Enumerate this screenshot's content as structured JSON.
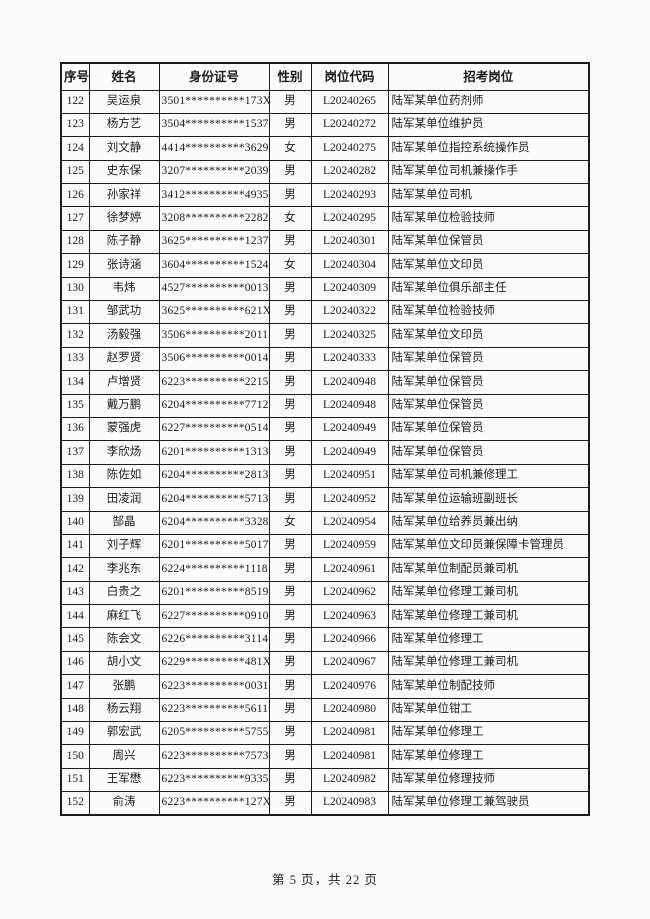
{
  "table": {
    "columns": [
      {
        "label": "序号"
      },
      {
        "label": "姓名"
      },
      {
        "label": "身份证号"
      },
      {
        "label": "性别"
      },
      {
        "label": "岗位代码"
      },
      {
        "label": "招考岗位"
      }
    ],
    "rows": [
      [
        "122",
        "吴运泉",
        "3501**********173X",
        "男",
        "L20240265",
        "陆军某单位药剂师"
      ],
      [
        "123",
        "杨方艺",
        "3504**********1537",
        "男",
        "L20240272",
        "陆军某单位维护员"
      ],
      [
        "124",
        "刘文静",
        "4414**********3629",
        "女",
        "L20240275",
        "陆军某单位指控系统操作员"
      ],
      [
        "125",
        "史东保",
        "3207**********2039",
        "男",
        "L20240282",
        "陆军某单位司机兼操作手"
      ],
      [
        "126",
        "孙家祥",
        "3412**********4935",
        "男",
        "L20240293",
        "陆军某单位司机"
      ],
      [
        "127",
        "徐梦婷",
        "3208**********2282",
        "女",
        "L20240295",
        "陆军某单位检验技师"
      ],
      [
        "128",
        "陈子静",
        "3625**********1237",
        "男",
        "L20240301",
        "陆军某单位保管员"
      ],
      [
        "129",
        "张诗涵",
        "3604**********1524",
        "女",
        "L20240304",
        "陆军某单位文印员"
      ],
      [
        "130",
        "韦炜",
        "4527**********0013",
        "男",
        "L20240309",
        "陆军某单位俱乐部主任"
      ],
      [
        "131",
        "邹武功",
        "3625**********621X",
        "男",
        "L20240322",
        "陆军某单位检验技师"
      ],
      [
        "132",
        "汤毅强",
        "3506**********2011",
        "男",
        "L20240325",
        "陆军某单位文印员"
      ],
      [
        "133",
        "赵罗贤",
        "3506**********0014",
        "男",
        "L20240333",
        "陆军某单位保管员"
      ],
      [
        "134",
        "卢增贤",
        "6223**********2215",
        "男",
        "L20240948",
        "陆军某单位保管员"
      ],
      [
        "135",
        "戴万鹏",
        "6204**********7712",
        "男",
        "L20240948",
        "陆军某单位保管员"
      ],
      [
        "136",
        "蒙强虎",
        "6227**********0514",
        "男",
        "L20240949",
        "陆军某单位保管员"
      ],
      [
        "137",
        "李欣炀",
        "6201**********1313",
        "男",
        "L20240949",
        "陆军某单位保管员"
      ],
      [
        "138",
        "陈佐如",
        "6204**********2813",
        "男",
        "L20240951",
        "陆军某单位司机兼修理工"
      ],
      [
        "139",
        "田凌润",
        "6204**********5713",
        "男",
        "L20240952",
        "陆军某单位运输班副班长"
      ],
      [
        "140",
        "郜晶",
        "6204**********3328",
        "女",
        "L20240954",
        "陆军某单位给养员兼出纳"
      ],
      [
        "141",
        "刘子辉",
        "6201**********5017",
        "男",
        "L20240959",
        "陆军某单位文印员兼保障卡管理员"
      ],
      [
        "142",
        "李兆东",
        "6224**********1118",
        "男",
        "L20240961",
        "陆军某单位制配员兼司机"
      ],
      [
        "143",
        "白贵之",
        "6201**********8519",
        "男",
        "L20240962",
        "陆军某单位修理工兼司机"
      ],
      [
        "144",
        "麻红飞",
        "6227**********0910",
        "男",
        "L20240963",
        "陆军某单位修理工兼司机"
      ],
      [
        "145",
        "陈会文",
        "6226**********3114",
        "男",
        "L20240966",
        "陆军某单位修理工"
      ],
      [
        "146",
        "胡小文",
        "6229**********481X",
        "男",
        "L20240967",
        "陆军某单位修理工兼司机"
      ],
      [
        "147",
        "张鹏",
        "6223**********0031",
        "男",
        "L20240976",
        "陆军某单位制配技师"
      ],
      [
        "148",
        "杨云翔",
        "6223**********5611",
        "男",
        "L20240980",
        "陆军某单位钳工"
      ],
      [
        "149",
        "郭宏武",
        "6205**********5755",
        "男",
        "L20240981",
        "陆军某单位修理工"
      ],
      [
        "150",
        "周兴",
        "6223**********7573",
        "男",
        "L20240981",
        "陆军某单位修理工"
      ],
      [
        "151",
        "王军懋",
        "6223**********9335",
        "男",
        "L20240982",
        "陆军某单位修理技师"
      ],
      [
        "152",
        "俞涛",
        "6223**********127X",
        "男",
        "L20240983",
        "陆军某单位修理工兼驾驶员"
      ]
    ]
  },
  "footer": {
    "page_label": "第 5 页，共 22 页"
  },
  "colors": {
    "text": "#1a1a1a",
    "border": "#1c1c1c",
    "page_background": "#fcfcfc"
  }
}
